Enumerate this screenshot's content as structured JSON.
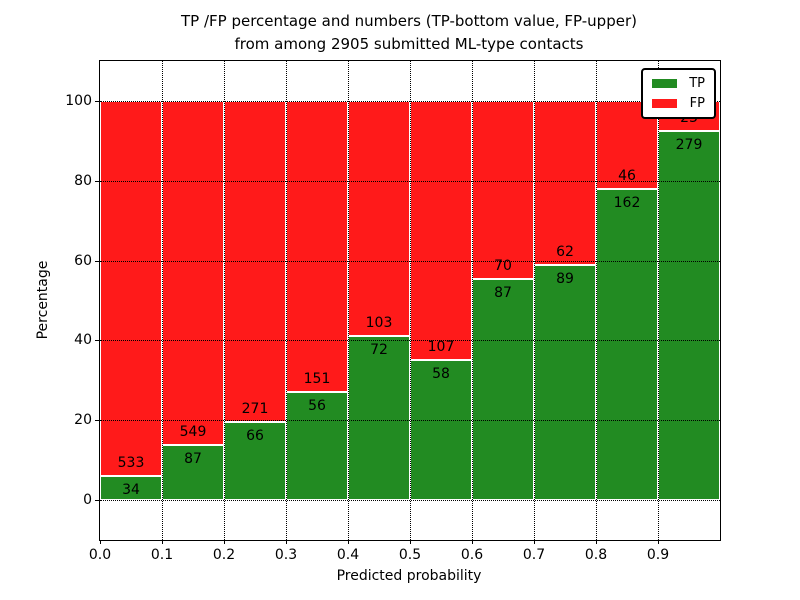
{
  "title": {
    "line1": "TP /FP percentage and numbers (TP-bottom value, FP-upper)",
    "line2": "from among 2905 submitted ML-type contacts"
  },
  "chart_data": {
    "type": "bar",
    "variant": "stacked-percentage",
    "title": "TP /FP percentage and numbers (TP-bottom value, FP-upper)\nfrom among 2905 submitted ML-type contacts",
    "xlabel": "Predicted probability",
    "ylabel": "Percentage",
    "total_contacts": 2905,
    "categories": [
      "0.0",
      "0.1",
      "0.2",
      "0.3",
      "0.4",
      "0.5",
      "0.6",
      "0.7",
      "0.8",
      "0.9"
    ],
    "bin_width": 0.1,
    "series": [
      {
        "name": "TP",
        "color": "#228b22",
        "counts": [
          34,
          87,
          66,
          56,
          72,
          58,
          87,
          89,
          162,
          279
        ],
        "percent": [
          6.0,
          13.7,
          19.6,
          27.1,
          41.1,
          35.2,
          55.4,
          58.9,
          77.9,
          92.4
        ]
      },
      {
        "name": "FP",
        "color": "#ff1a1a",
        "counts": [
          533,
          549,
          271,
          151,
          103,
          107,
          70,
          62,
          46,
          23
        ],
        "percent": [
          94.0,
          86.3,
          80.4,
          72.9,
          58.9,
          64.8,
          44.6,
          41.1,
          22.1,
          7.6
        ]
      }
    ],
    "yticks": [
      0,
      20,
      40,
      60,
      80,
      100
    ],
    "xticks": [
      "0.0",
      "0.1",
      "0.2",
      "0.3",
      "0.4",
      "0.5",
      "0.6",
      "0.7",
      "0.8",
      "0.9"
    ],
    "ylim": [
      -10,
      110
    ],
    "xlim": [
      0.0,
      1.0
    ],
    "grid": {
      "style": "dotted",
      "color": "#000000",
      "above_bars": true
    },
    "bar_edge_color": "#ffffff",
    "legend": {
      "position": "upper-right",
      "entries": [
        {
          "label": "TP",
          "color": "#228b22"
        },
        {
          "label": "FP",
          "color": "#ff1a1a"
        }
      ]
    }
  },
  "colors": {
    "tp": "#228b22",
    "fp": "#ff1a1a",
    "background": "#ffffff",
    "text": "#000000",
    "spine": "#000000"
  }
}
